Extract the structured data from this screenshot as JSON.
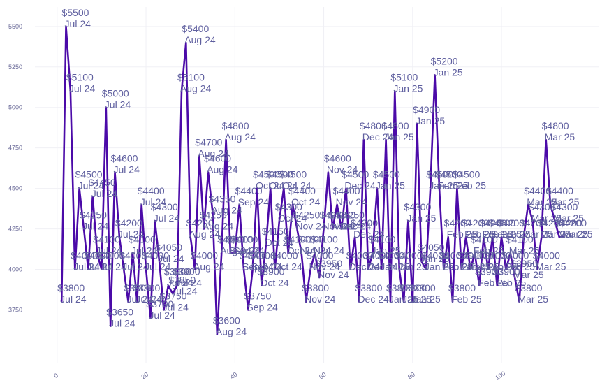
{
  "chart_data": {
    "type": "line",
    "title": "",
    "xlabel": "",
    "ylabel": "",
    "xlim": [
      -5,
      122
    ],
    "ylim": [
      3420,
      5620
    ],
    "grid": true,
    "color": "#4b0aa8",
    "yticks": [
      3750,
      4000,
      4250,
      4500,
      4750,
      5000,
      5250,
      5500
    ],
    "ytick_labels": [
      "3750",
      "4000",
      "4250",
      "4500",
      "4750",
      "5000",
      "5250",
      "5500"
    ],
    "xticks": [
      0,
      20,
      40,
      60,
      80,
      100
    ],
    "xtick_labels": [
      "0",
      "20",
      "40",
      "60",
      "80",
      "100"
    ],
    "x": [
      1,
      2,
      3,
      4,
      5,
      6,
      7,
      8,
      9,
      10,
      11,
      12,
      13,
      14,
      15,
      16,
      17,
      18,
      19,
      20,
      21,
      22,
      23,
      24,
      25,
      26,
      27,
      28,
      29,
      30,
      31,
      32,
      33,
      34,
      35,
      36,
      37,
      38,
      39,
      40,
      41,
      42,
      43,
      44,
      45,
      46,
      47,
      48,
      49,
      50,
      51,
      52,
      53,
      54,
      55,
      56,
      57,
      58,
      59,
      60,
      61,
      62,
      63,
      64,
      65,
      66,
      67,
      68,
      69,
      70,
      71,
      72,
      73,
      74,
      75,
      76,
      77,
      78,
      79,
      80,
      81,
      82,
      83,
      84,
      85,
      86,
      87,
      88,
      89,
      90,
      91,
      92,
      93,
      94,
      95,
      96,
      97,
      98,
      99,
      100,
      101,
      102,
      103,
      104,
      105,
      106,
      107,
      108,
      109,
      110,
      111,
      112,
      113,
      114
    ],
    "values": [
      3800,
      5500,
      5100,
      4000,
      4500,
      4250,
      4000,
      4450,
      4100,
      4000,
      5000,
      3650,
      4600,
      4200,
      4000,
      3800,
      4100,
      3800,
      4400,
      4000,
      3700,
      4300,
      4050,
      3750,
      3900,
      3850,
      3900,
      5100,
      5400,
      4200,
      4000,
      4700,
      4250,
      4600,
      4350,
      3600,
      4100,
      4800,
      4100,
      4100,
      4400,
      4000,
      3750,
      4000,
      4500,
      3900,
      4150,
      4500,
      4000,
      4300,
      4500,
      4100,
      4400,
      4250,
      4100,
      3800,
      4000,
      4100,
      3950,
      4250,
      4600,
      4250,
      4400,
      4250,
      4500,
      4000,
      4200,
      3800,
      4800,
      4000,
      4100,
      4500,
      4000,
      4800,
      3800,
      5100,
      4000,
      3800,
      4300,
      3800,
      4900,
      4050,
      4000,
      4500,
      5200,
      4500,
      4000,
      4200,
      3800,
      4500,
      4000,
      4200,
      4000,
      4100,
      3900,
      4200,
      4000,
      4200,
      3900,
      4200,
      4000,
      4100,
      3950,
      3800,
      4200,
      4400,
      4300,
      4000,
      4200,
      4800,
      4400,
      4300,
      4200,
      4200
    ],
    "labels": [
      "$3800 Jul 24",
      "$5500 Jul 24",
      "$5100 Jul 24",
      "$4000 Jul 24",
      "$4500 Jul 24",
      "$4250 Jul 24",
      "$4000 Jul 24",
      "$4450 Jul 24",
      "$4100 Jul 24",
      "$4000 Jul 24",
      "$5000 Jul 24",
      "$3650 Jul 24",
      "$4600 Jul 24",
      "$4200 Jul 24",
      "$4000 Jul 24",
      "$3800 Jul 24",
      "$4100 Jul 24",
      "$3800 Jul 24",
      "$4400 Jul 24",
      "$4000 Jul 24",
      "$3700 Jul 24",
      "$4300 Jul 24",
      "$4050 Jul 24",
      "$3750 Jul 24",
      "$3900 Jul 24",
      "$3850 Jul 24",
      "$3900 Jul 24",
      "$5100 Aug 24",
      "$5400 Aug 24",
      "$4200 Aug 24",
      "$4000 Aug 24",
      "$4700 Aug 24",
      "$4250 Aug 24",
      "$4600 Aug 24",
      "$4350 Aug 24",
      "$3600 Aug 24",
      "$4100 Aug 24",
      "$4800 Aug 24",
      "$4100 Sep 24",
      "$4100 Sep 24",
      "$4400 Sep 24",
      "$4000 Sep 24",
      "$3750 Sep 24",
      "$4000 Sep 24",
      "$4500 Oct 24",
      "$3900 Oct 24",
      "$4150 Oct 24",
      "$4500 Oct 24",
      "$4000 Oct 24",
      "$4300 Oct 24",
      "$4500 Oct 24",
      "$4100 Oct 24",
      "$4400 Oct 24",
      "$4250 Nov 24",
      "$4100 Nov 24",
      "$3800 Nov 24",
      "$4000 Nov 24",
      "$4100 Nov 24",
      "$3950 Nov 24",
      "$4250 Nov 24",
      "$4600 Nov 24",
      "$4250 Nov 24",
      "$4400 Nov 24",
      "$4250 Dec 24",
      "$4500 Dec 24",
      "$4000 Dec 24",
      "$4200 Dec 24",
      "$3800 Dec 24",
      "$4800 Dec 24",
      "$4000 Dec 24",
      "$4100 Jan 25",
      "$4500 Jan 25",
      "$4000 Jan 25",
      "$4800 Jan 25",
      "$3800 Jan 25",
      "$5100 Jan 25",
      "$4000 Jan 25",
      "$3800 Jan 25",
      "$4300 Jan 25",
      "$3800 Jan 25",
      "$4900 Jan 25",
      "$4050 Jan 25",
      "$4000 Jan 25",
      "$4500 Jan 25",
      "$5200 Jan 25",
      "$4500 Feb 25",
      "$4000 Feb 25",
      "$4200 Feb 25",
      "$3800 Feb 25",
      "$4500 Feb 25",
      "$4000 Feb 25",
      "$4200 Feb 25",
      "$4000 Feb 25",
      "$4100 Feb 25",
      "$3900 Feb 25",
      "$4200 Feb 25",
      "$4000 Feb 25",
      "$4200 Feb 25",
      "$3900 Feb 25",
      "$4200 Feb 25",
      "$4000 Feb 25",
      "$4100 Mar 25",
      "$3950 Mar 25",
      "$3800 Mar 25",
      "$4200 Mar 25",
      "$4400 Mar 25",
      "$4300 Mar 25",
      "$4000 Mar 25",
      "$4200 Mar 25",
      "$4800 Mar 25",
      "$4400 Mar 25",
      "$4300 Mar 25",
      "$4200 Mar 25",
      "$4200 Mar 25"
    ]
  }
}
